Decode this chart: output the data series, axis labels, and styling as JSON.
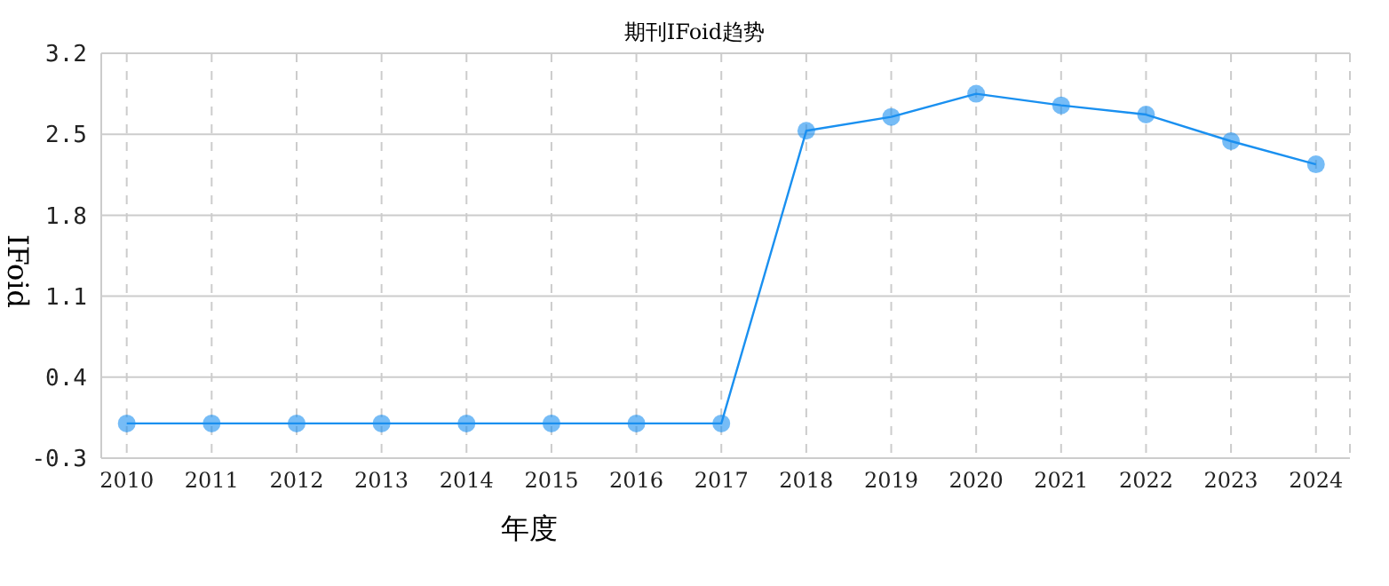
{
  "chart_data": {
    "type": "line",
    "title": "期刊IFoid趋势",
    "xlabel": "年度",
    "ylabel": "IFoid",
    "categories": [
      "2010",
      "2011",
      "2012",
      "2013",
      "2014",
      "2015",
      "2016",
      "2017",
      "2018",
      "2019",
      "2020",
      "2021",
      "2022",
      "2023",
      "2024"
    ],
    "series": [
      {
        "color": "#1a90f0",
        "values": [
          0,
          0,
          0,
          0,
          0,
          0,
          0,
          0,
          2.53,
          2.65,
          2.85,
          2.75,
          2.67,
          2.44,
          2.24
        ]
      }
    ],
    "ylim": [
      -0.3,
      3.2
    ],
    "yticks": [
      -0.3,
      0.4,
      1.1,
      1.8,
      2.5,
      3.2
    ],
    "grid": true,
    "marker": "circle",
    "line_style": "solid",
    "legend": false
  }
}
